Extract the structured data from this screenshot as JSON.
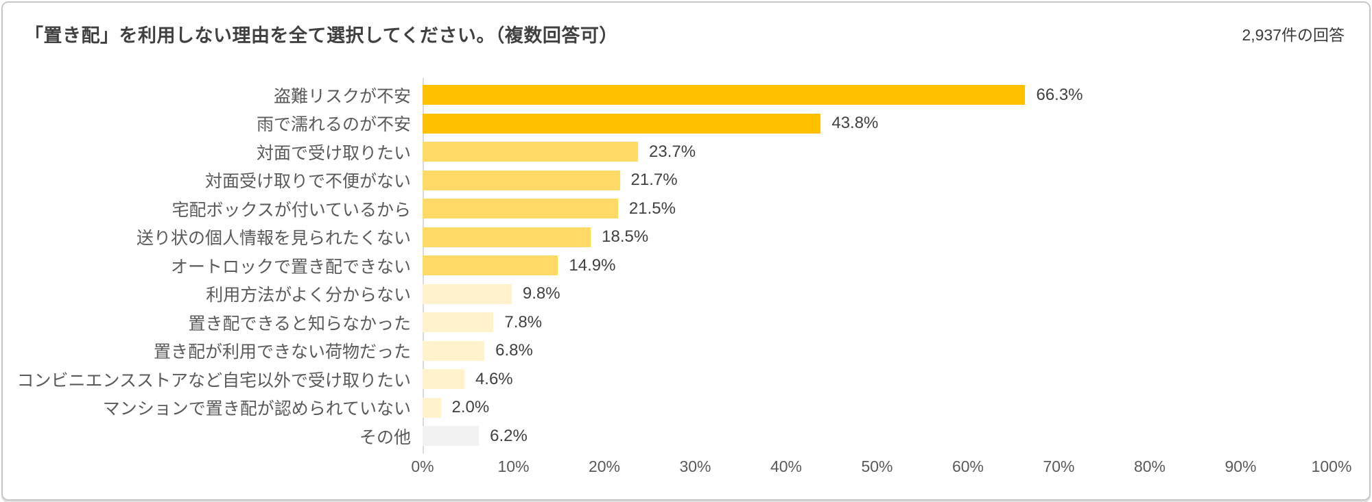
{
  "header": {
    "title": "「置き配」を利用しない理由を全て選択してください。（複数回答可）",
    "response_count": "2,937件の回答"
  },
  "chart_data": {
    "type": "bar",
    "orientation": "horizontal",
    "title": "「置き配」を利用しない理由を全て選択してください。（複数回答可）",
    "categories": [
      "盗難リスクが不安",
      "雨で濡れるのが不安",
      "対面で受け取りたい",
      "対面受け取りで不便がない",
      "宅配ボックスが付いているから",
      "送り状の個人情報を見られたくない",
      "オートロックで置き配できない",
      "利用方法がよく分からない",
      "置き配できると知らなかった",
      "置き配が利用できない荷物だった",
      "コンビニエンスストアなど自宅以外で受け取りたい",
      "マンションで置き配が認められていない",
      "その他"
    ],
    "values": [
      66.3,
      43.8,
      23.7,
      21.7,
      21.5,
      18.5,
      14.9,
      9.8,
      7.8,
      6.8,
      4.6,
      2.0,
      6.2
    ],
    "value_labels": [
      "66.3%",
      "43.8%",
      "23.7%",
      "21.7%",
      "21.5%",
      "18.5%",
      "14.9%",
      "9.8%",
      "7.8%",
      "6.8%",
      "4.6%",
      "2.0%",
      "6.2%"
    ],
    "bar_colors": [
      "#FFC000",
      "#FFC000",
      "#FFD966",
      "#FFD966",
      "#FFD966",
      "#FFD966",
      "#FFD966",
      "#FFF2CC",
      "#FFF2CC",
      "#FFF2CC",
      "#FFF2CC",
      "#FFF2CC",
      "#F2F2F2"
    ],
    "xlabel": "",
    "ylabel": "",
    "xlim": [
      0,
      100
    ],
    "x_ticks": [
      "0%",
      "10%",
      "20%",
      "30%",
      "40%",
      "50%",
      "60%",
      "70%",
      "80%",
      "90%",
      "100%"
    ],
    "grid": false,
    "legend": false,
    "axis_line_color": "#D9D9D9",
    "colors": {
      "title_text": "#404040",
      "category_text": "#595959",
      "value_text": "#404040",
      "tick_text": "#595959",
      "frame_border": "#C6C6C6",
      "background": "#FFFFFF"
    }
  }
}
